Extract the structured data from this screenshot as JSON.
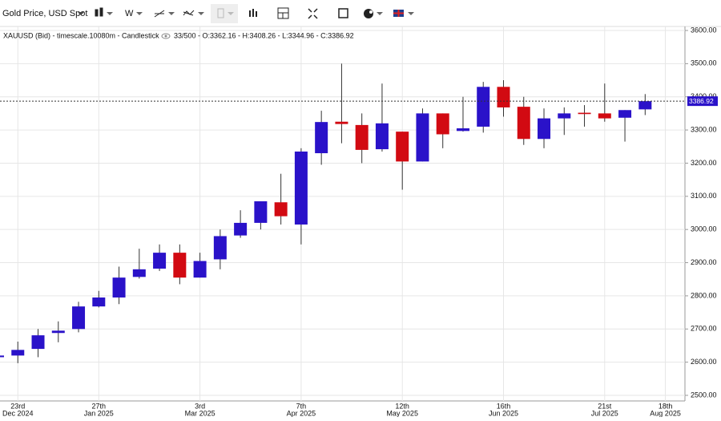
{
  "toolbar": {
    "instrument": "Gold Price, USD Spot",
    "interval": "W"
  },
  "chart_data": {
    "type": "candlestick",
    "title": "XAUUSD (Bid) - timescale.10080m - Candlestick",
    "info": "33/500 - O:3362.16 - H:3408.26 - L:3344.96 - C:3386.92",
    "categories": [
      null,
      "23rd",
      null,
      null,
      null,
      "27th",
      null,
      null,
      null,
      null,
      "3rd",
      null,
      null,
      null,
      null,
      "7th",
      null,
      null,
      null,
      null,
      "12th",
      null,
      null,
      null,
      null,
      "16th",
      null,
      null,
      null,
      null,
      "21st",
      null,
      null,
      "18th"
    ],
    "category_sublabels": [
      null,
      "Dec 2024",
      null,
      null,
      null,
      "Jan 2025",
      null,
      null,
      null,
      null,
      "Mar 2025",
      null,
      null,
      null,
      null,
      "Apr 2025",
      null,
      null,
      null,
      null,
      "May 2025",
      null,
      null,
      null,
      null,
      "Jun 2025",
      null,
      null,
      null,
      null,
      "Jul 2025",
      null,
      null,
      "Aug 2025"
    ],
    "open": [
      2615,
      2620,
      2640,
      2688,
      2700,
      2768,
      2795,
      2857,
      2882,
      2930,
      2855,
      2910,
      2982,
      3020,
      3082,
      3015,
      3230,
      3325,
      3315,
      3242,
      3295,
      3205,
      3350,
      3297,
      3310,
      3430,
      3370,
      3273,
      3335,
      3352,
      3350,
      3337,
      3362.16,
      null
    ],
    "high": [
      2625,
      2662,
      2700,
      2723,
      2782,
      2815,
      2888,
      2942,
      2955,
      2955,
      2930,
      3000,
      3058,
      3085,
      3168,
      3245,
      3358,
      3500,
      3350,
      3440,
      3295,
      3365,
      3350,
      3400,
      3445,
      3450,
      3400,
      3365,
      3368,
      3375,
      3440,
      3360,
      3408.26,
      null
    ],
    "low": [
      2610,
      2597,
      2615,
      2660,
      2690,
      2765,
      2775,
      2852,
      2875,
      2835,
      2855,
      2880,
      2975,
      3000,
      3015,
      2955,
      3195,
      3260,
      3200,
      3235,
      3120,
      3205,
      3245,
      3295,
      3292,
      3340,
      3255,
      3245,
      3285,
      3310,
      3325,
      3265,
      3344.96,
      null
    ],
    "close": [
      2620,
      2637,
      2681,
      2695,
      2768,
      2795,
      2855,
      2880,
      2930,
      2855,
      2905,
      2980,
      3020,
      3085,
      3040,
      3235,
      3324,
      3318,
      3240,
      3320,
      3205,
      3350,
      3287,
      3305,
      3430,
      3368,
      3273,
      3335,
      3350,
      3348,
      3335,
      3360,
      3386.92,
      null
    ],
    "up_color": "#2a12c9",
    "down_color": "#d20a12",
    "last_price": 3386.92,
    "ylim": [
      2500,
      3600
    ],
    "yticks": [
      {
        "value": 2500,
        "label": "2500.00"
      },
      {
        "value": 2600,
        "label": "2600.00"
      },
      {
        "value": 2700,
        "label": "2700.00"
      },
      {
        "value": 2800,
        "label": "2800.00"
      },
      {
        "value": 2900,
        "label": "2900.00"
      },
      {
        "value": 3000,
        "label": "3000.00"
      },
      {
        "value": 3100,
        "label": "3100.00"
      },
      {
        "value": 3200,
        "label": "3200.00"
      },
      {
        "value": 3300,
        "label": "3300.00"
      },
      {
        "value": 3400,
        "label": "3400.00"
      },
      {
        "value": 3500,
        "label": "3500.00"
      },
      {
        "value": 3600,
        "label": "3600.00"
      }
    ],
    "grid": true
  }
}
